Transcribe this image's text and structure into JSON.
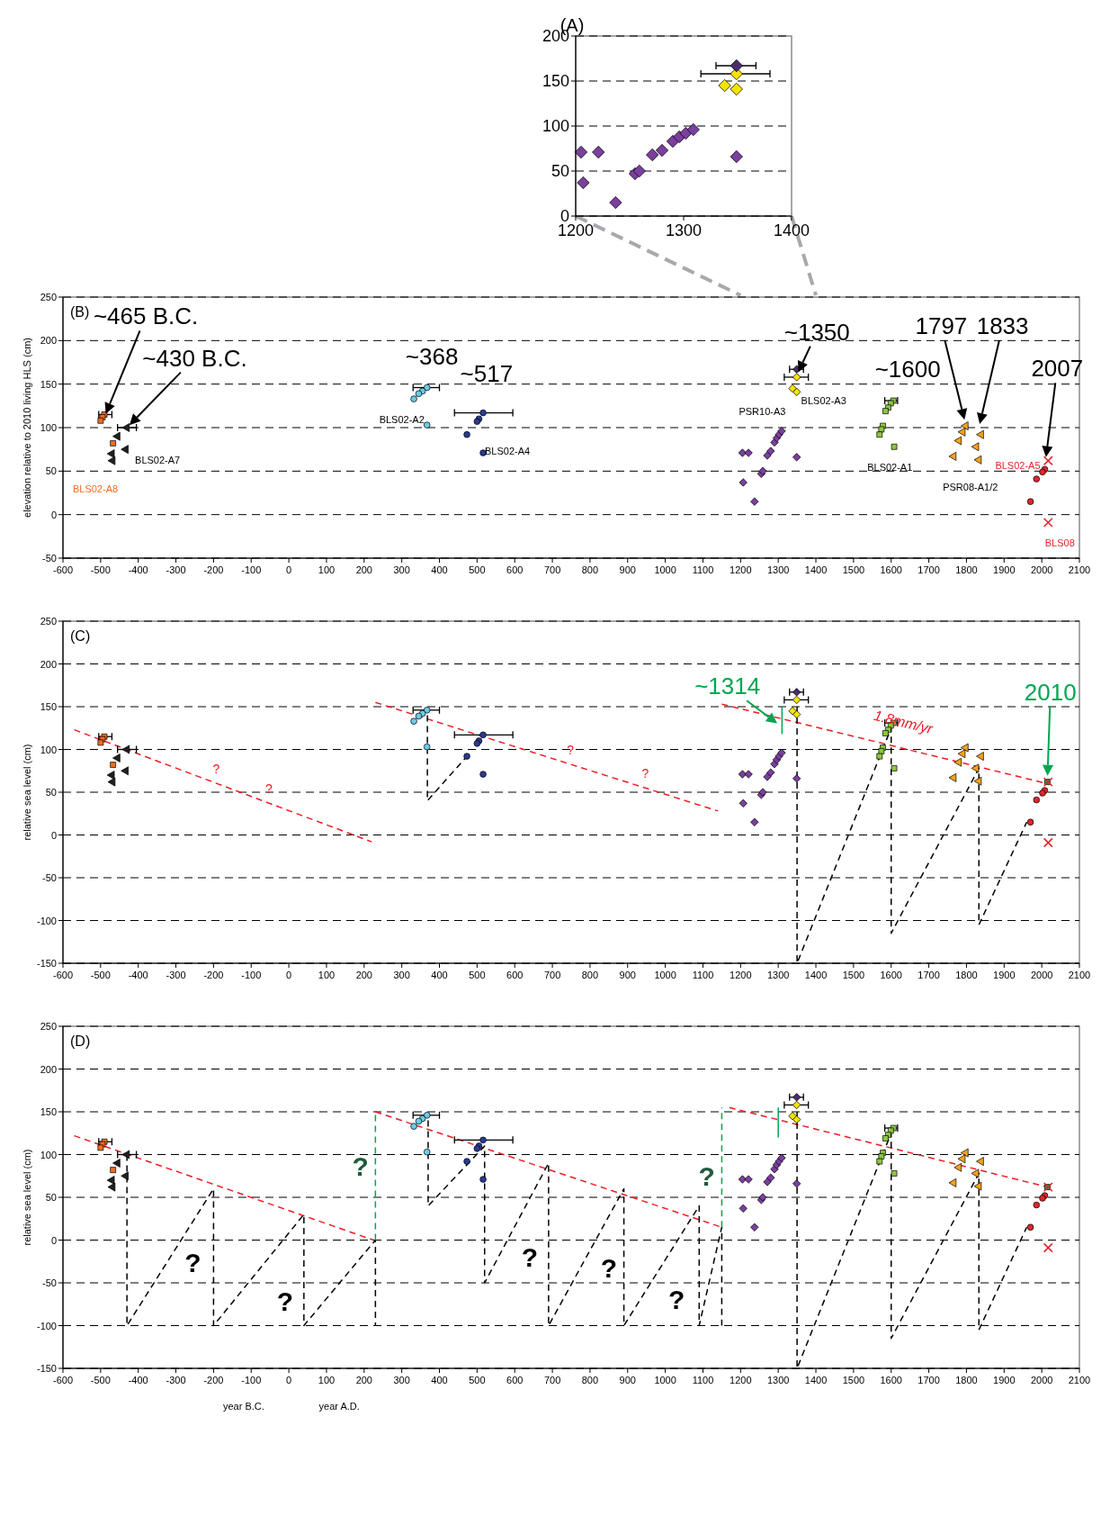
{
  "chart_data": [
    {
      "type": "scatter",
      "title": "(A)",
      "xlim": [
        1200,
        1400
      ],
      "xticks": [
        1200,
        1300,
        1400
      ],
      "ylim": [
        0,
        200
      ],
      "yticks": [
        0,
        50,
        100,
        150,
        200
      ],
      "grid": "y",
      "series": [
        {
          "color": "#7b3f9e",
          "marker": "diamond",
          "x": [
            1205,
            1207,
            1221,
            1237,
            1255,
            1259,
            1271,
            1280,
            1290,
            1296,
            1302,
            1309,
            1349
          ],
          "values": [
            71,
            37,
            71,
            15,
            47,
            50,
            68,
            73,
            83,
            88,
            92,
            96,
            66
          ]
        },
        {
          "color": "#f5e400",
          "marker": "diamond",
          "x": [
            1349,
            1349,
            1338
          ],
          "values": [
            158,
            141,
            145
          ],
          "xerrors": [
            [
              1316,
              1380
            ],
            null,
            null
          ]
        },
        {
          "color": "#4a2c6e",
          "marker": "diamond",
          "x": [
            1349
          ],
          "values": [
            167
          ],
          "xerrors": [
            [
              1330,
              1367
            ]
          ]
        }
      ]
    },
    {
      "type": "scatter",
      "title": "(B)",
      "ylabel": "elevation relative to 2010 living HLS (cm)",
      "xlim": [
        -600,
        2100
      ],
      "xticks": [
        -600,
        -500,
        -400,
        -300,
        -200,
        -100,
        0,
        100,
        200,
        300,
        400,
        500,
        600,
        700,
        800,
        900,
        1000,
        1100,
        1200,
        1300,
        1400,
        1500,
        1600,
        1700,
        1800,
        1900,
        2000,
        2100
      ],
      "ylim": [
        -50,
        250
      ],
      "yticks": [
        -50,
        0,
        50,
        100,
        150,
        200,
        250
      ],
      "grid": "y",
      "annotations": [
        "~465 B.C.",
        "~430 B.C.",
        "~368",
        "~517",
        "~1350",
        "~1600",
        "1797",
        "1833",
        "2007"
      ],
      "series": [
        {
          "name": "PSR10-A3",
          "color": "#7b3f9e",
          "marker": "diamond",
          "x": [
            1205,
            1207,
            1221,
            1237,
            1255,
            1259,
            1271,
            1280,
            1290,
            1296,
            1302,
            1309,
            1349
          ],
          "values": [
            71,
            37,
            71,
            15,
            47,
            50,
            68,
            73,
            83,
            88,
            92,
            96,
            66
          ]
        },
        {
          "color": "#4a2c6e",
          "marker": "diamond",
          "x": [
            1349
          ],
          "values": [
            167
          ],
          "xerrors": [
            [
              1330,
              1367
            ]
          ]
        },
        {
          "name": "BLS02-A3",
          "color": "#f5e400",
          "marker": "diamond",
          "x": [
            1349,
            1349,
            1338
          ],
          "values": [
            158,
            141,
            145
          ],
          "xerrors": [
            [
              1316,
              1380
            ],
            null,
            null
          ]
        },
        {
          "name": "BLS02-A1",
          "color": "#8cc63f",
          "marker": "square",
          "x": [
            1606,
            1599,
            1592,
            1585,
            1578,
            1574,
            1569,
            1608
          ],
          "values": [
            131,
            128,
            123,
            119,
            102,
            98,
            92,
            78
          ],
          "xerrors": [
            [
              1583,
              1617
            ],
            null,
            null,
            null,
            null,
            null,
            null,
            null
          ]
        },
        {
          "name": "PSR08-A1/2",
          "color": "#f7a21b",
          "marker": "triangle",
          "x": [
            1839,
            1826,
            1798,
            1790,
            1780,
            1766,
            1833
          ],
          "values": [
            92,
            78,
            102,
            95,
            85,
            67,
            63
          ]
        },
        {
          "name": "BLS02-A5",
          "color": "#e0262b",
          "marker": "circle",
          "x": [
            2008,
            2002,
            1986,
            1970
          ],
          "values": [
            52,
            49,
            41,
            15
          ]
        },
        {
          "name": "BLS08",
          "color": "#e0262b",
          "marker": "cross",
          "x": [
            2017,
            2017
          ],
          "values": [
            62,
            -9
          ]
        },
        {
          "name": "BLS02-A2",
          "color": "#6ccbe6",
          "marker": "circle",
          "x": [
            367,
            355,
            345,
            332,
            367
          ],
          "values": [
            146,
            142,
            139,
            133,
            103
          ],
          "xerrors": [
            [
              330,
              400
            ],
            null,
            null,
            null,
            null
          ]
        },
        {
          "name": "BLS02-A4",
          "color": "#2b3990",
          "marker": "circle",
          "x": [
            516,
            505,
            500,
            473,
            516
          ],
          "values": [
            117,
            110,
            107,
            92,
            71
          ],
          "xerrors": [
            [
              440,
              595
            ],
            null,
            null,
            null,
            null
          ]
        },
        {
          "name": "BLS02-A7",
          "color": "#231f20",
          "marker": "triangle",
          "x": [
            -430,
            -433,
            -455,
            -470,
            -468
          ],
          "values": [
            100,
            75,
            90,
            70,
            62
          ],
          "xerrors": [
            [
              -455,
              -405
            ],
            null,
            null,
            null,
            null
          ]
        },
        {
          "name": "BLS02-A8",
          "color": "#f26b21",
          "marker": "square",
          "x": [
            -490,
            -495,
            -500,
            -467
          ],
          "values": [
            115,
            112,
            108,
            82
          ],
          "xerrors": [
            [
              -505,
              -470
            ],
            null,
            null,
            null
          ]
        }
      ]
    },
    {
      "type": "scatter",
      "title": "(C)",
      "ylabel": "relative sea level (cm)",
      "xlim": [
        -600,
        2100
      ],
      "xticks": [
        -600,
        -500,
        -400,
        -300,
        -200,
        -100,
        0,
        100,
        200,
        300,
        400,
        500,
        600,
        700,
        800,
        900,
        1000,
        1100,
        1200,
        1300,
        1400,
        1500,
        1600,
        1700,
        1800,
        1900,
        2000,
        2100
      ],
      "ylim": [
        -150,
        250
      ],
      "yticks": [
        -150,
        -100,
        -50,
        0,
        50,
        100,
        150,
        200,
        250
      ],
      "grid": "y",
      "annotations": [
        "~1314",
        "2010",
        "1.8mm/yr",
        "?",
        "?",
        "?",
        "?"
      ],
      "series": [
        {
          "type": "line",
          "color": "#ed1c24",
          "line_style": "dashed",
          "x": [
            1150,
            2015
          ],
          "values": [
            153,
            60
          ]
        },
        {
          "type": "line",
          "color": "#ed1c24",
          "line_style": "dashed",
          "x": [
            230,
            1140
          ],
          "values": [
            155,
            28
          ]
        },
        {
          "type": "line",
          "color": "#ed1c24",
          "line_style": "dashed",
          "x": [
            -570,
            220
          ],
          "values": [
            123,
            -8
          ]
        },
        {
          "type": "line",
          "color": "#000000",
          "line_style": "dashed",
          "x": [
            368,
            368,
            473
          ],
          "values": [
            140,
            40,
            92
          ]
        },
        {
          "type": "line",
          "color": "#000000",
          "line_style": "dashed",
          "x": [
            1350,
            1350,
            1600,
            1600,
            1833,
            1833,
            1960
          ],
          "values": [
            150,
            -150,
            125,
            -115,
            78,
            -105,
            15
          ]
        },
        {
          "type": "line",
          "color": "#00a651",
          "line_style": "solid",
          "x": [
            1310,
            1310
          ],
          "values": [
            118,
            150
          ]
        },
        {
          "color": "#00a651",
          "marker": "square",
          "x": [
            2015
          ],
          "values": [
            62
          ]
        },
        {
          "color": "#7b3f9e",
          "marker": "diamond",
          "x": [
            1205,
            1207,
            1221,
            1237,
            1255,
            1259,
            1271,
            1280,
            1290,
            1296,
            1302,
            1309,
            1349
          ],
          "values": [
            71,
            37,
            71,
            15,
            47,
            50,
            68,
            73,
            83,
            88,
            92,
            96,
            66
          ]
        },
        {
          "color": "#4a2c6e",
          "marker": "diamond",
          "x": [
            1349
          ],
          "values": [
            167
          ],
          "xerrors": [
            [
              1330,
              1367
            ]
          ]
        },
        {
          "color": "#f5e400",
          "marker": "diamond",
          "x": [
            1349,
            1349,
            1338
          ],
          "values": [
            158,
            141,
            145
          ],
          "xerrors": [
            [
              1316,
              1380
            ],
            null,
            null
          ]
        },
        {
          "color": "#8cc63f",
          "marker": "square",
          "x": [
            1606,
            1599,
            1592,
            1585,
            1578,
            1574,
            1569,
            1608
          ],
          "values": [
            131,
            128,
            123,
            119,
            102,
            98,
            92,
            78
          ],
          "xerrors": [
            [
              1583,
              1617
            ],
            null,
            null,
            null,
            null,
            null,
            null,
            null
          ]
        },
        {
          "color": "#f7a21b",
          "marker": "triangle",
          "x": [
            1839,
            1826,
            1798,
            1790,
            1780,
            1766,
            1833
          ],
          "values": [
            92,
            78,
            102,
            95,
            85,
            67,
            63
          ]
        },
        {
          "color": "#e0262b",
          "marker": "circle",
          "x": [
            2008,
            2002,
            1986,
            1970
          ],
          "values": [
            52,
            49,
            41,
            15
          ]
        },
        {
          "color": "#e0262b",
          "marker": "cross",
          "x": [
            2017,
            2017
          ],
          "values": [
            62,
            -9
          ]
        },
        {
          "color": "#6ccbe6",
          "marker": "circle",
          "x": [
            367,
            355,
            345,
            332,
            367
          ],
          "values": [
            146,
            142,
            139,
            133,
            103
          ],
          "xerrors": [
            [
              330,
              400
            ],
            null,
            null,
            null,
            null
          ]
        },
        {
          "color": "#2b3990",
          "marker": "circle",
          "x": [
            516,
            505,
            500,
            473,
            516
          ],
          "values": [
            117,
            110,
            107,
            92,
            71
          ],
          "xerrors": [
            [
              440,
              595
            ],
            null,
            null,
            null,
            null
          ]
        },
        {
          "color": "#231f20",
          "marker": "triangle",
          "x": [
            -430,
            -433,
            -455,
            -470,
            -468
          ],
          "values": [
            100,
            75,
            90,
            70,
            62
          ],
          "xerrors": [
            [
              -455,
              -405
            ],
            null,
            null,
            null,
            null
          ]
        },
        {
          "color": "#f26b21",
          "marker": "square",
          "x": [
            -490,
            -495,
            -500,
            -467
          ],
          "values": [
            115,
            112,
            108,
            82
          ],
          "xerrors": [
            [
              -505,
              -470
            ],
            null,
            null,
            null
          ]
        }
      ]
    },
    {
      "type": "scatter",
      "title": "(D)",
      "ylabel": "relative sea level (cm)",
      "xlim": [
        -600,
        2100
      ],
      "xticks": [
        -600,
        -500,
        -400,
        -300,
        -200,
        -100,
        0,
        100,
        200,
        300,
        400,
        500,
        600,
        700,
        800,
        900,
        1000,
        1100,
        1200,
        1300,
        1400,
        1500,
        1600,
        1700,
        1800,
        1900,
        2000,
        2100
      ],
      "ylim": [
        -150,
        250
      ],
      "yticks": [
        -150,
        -100,
        -50,
        0,
        50,
        100,
        150,
        200,
        250
      ],
      "grid": "y",
      "annotations": [
        "?",
        "?",
        "?",
        "?",
        "?",
        "?",
        "?",
        "year B.C.",
        "year A.D."
      ],
      "series": [
        {
          "type": "line",
          "color": "#ed1c24",
          "line_style": "dashed",
          "x": [
            1170,
            2015
          ],
          "values": [
            155,
            62
          ]
        },
        {
          "type": "line",
          "color": "#ed1c24",
          "line_style": "dashed",
          "x": [
            230,
            1150
          ],
          "values": [
            150,
            15
          ]
        },
        {
          "type": "line",
          "color": "#ed1c24",
          "line_style": "dashed",
          "x": [
            -570,
            225
          ],
          "values": [
            122,
            0
          ]
        },
        {
          "type": "line",
          "color": "#000000",
          "line_style": "dashed",
          "x": [
            -430,
            -430,
            -200,
            -200,
            40,
            40,
            230,
            230
          ],
          "values": [
            100,
            -100,
            60,
            -100,
            30,
            -100,
            0,
            -100
          ]
        },
        {
          "type": "line",
          "color": "#000000",
          "line_style": "dashed",
          "x": [
            370,
            370,
            520,
            520,
            690,
            690,
            890,
            890,
            1090,
            1090,
            1150,
            1150
          ],
          "values": [
            140,
            40,
            110,
            -50,
            90,
            -100,
            60,
            -100,
            40,
            -100,
            15,
            -100
          ]
        },
        {
          "type": "line",
          "color": "#000000",
          "line_style": "dashed",
          "x": [
            1350,
            1350,
            1600,
            1600,
            1833,
            1833,
            1960
          ],
          "values": [
            150,
            -150,
            125,
            -115,
            78,
            -105,
            15
          ]
        },
        {
          "type": "line",
          "color": "#00a651",
          "line_style": "dashed",
          "x": [
            230,
            230
          ],
          "values": [
            0,
            150
          ]
        },
        {
          "type": "line",
          "color": "#00a651",
          "line_style": "dashed",
          "x": [
            1150,
            1150
          ],
          "values": [
            15,
            155
          ]
        },
        {
          "type": "line",
          "color": "#00a651",
          "line_style": "solid",
          "x": [
            1300,
            1300
          ],
          "values": [
            120,
            155
          ]
        },
        {
          "color": "#00a651",
          "marker": "square",
          "x": [
            2015
          ],
          "values": [
            62
          ]
        },
        {
          "color": "#7b3f9e",
          "marker": "diamond",
          "x": [
            1205,
            1207,
            1221,
            1237,
            1255,
            1259,
            1271,
            1280,
            1290,
            1296,
            1302,
            1309,
            1349
          ],
          "values": [
            71,
            37,
            71,
            15,
            47,
            50,
            68,
            73,
            83,
            88,
            92,
            96,
            66
          ]
        },
        {
          "color": "#4a2c6e",
          "marker": "diamond",
          "x": [
            1349
          ],
          "values": [
            167
          ],
          "xerrors": [
            [
              1330,
              1367
            ]
          ]
        },
        {
          "color": "#f5e400",
          "marker": "diamond",
          "x": [
            1349,
            1349,
            1338
          ],
          "values": [
            158,
            141,
            145
          ],
          "xerrors": [
            [
              1316,
              1380
            ],
            null,
            null
          ]
        },
        {
          "color": "#8cc63f",
          "marker": "square",
          "x": [
            1606,
            1599,
            1592,
            1585,
            1578,
            1574,
            1569,
            1608
          ],
          "values": [
            131,
            128,
            123,
            119,
            102,
            98,
            92,
            78
          ],
          "xerrors": [
            [
              1583,
              1617
            ],
            null,
            null,
            null,
            null,
            null,
            null,
            null
          ]
        },
        {
          "color": "#f7a21b",
          "marker": "triangle",
          "x": [
            1839,
            1826,
            1798,
            1790,
            1780,
            1766,
            1833
          ],
          "values": [
            92,
            78,
            102,
            95,
            85,
            67,
            63
          ]
        },
        {
          "color": "#e0262b",
          "marker": "circle",
          "x": [
            2008,
            2002,
            1986,
            1970
          ],
          "values": [
            52,
            49,
            41,
            15
          ]
        },
        {
          "color": "#e0262b",
          "marker": "cross",
          "x": [
            2017,
            2017
          ],
          "values": [
            62,
            -9
          ]
        },
        {
          "color": "#6ccbe6",
          "marker": "circle",
          "x": [
            367,
            355,
            345,
            332,
            367
          ],
          "values": [
            146,
            142,
            139,
            133,
            103
          ],
          "xerrors": [
            [
              330,
              400
            ],
            null,
            null,
            null,
            null
          ]
        },
        {
          "color": "#2b3990",
          "marker": "circle",
          "x": [
            516,
            505,
            500,
            473,
            516
          ],
          "values": [
            117,
            110,
            107,
            92,
            71
          ],
          "xerrors": [
            [
              440,
              595
            ],
            null,
            null,
            null,
            null
          ]
        },
        {
          "color": "#231f20",
          "marker": "triangle",
          "x": [
            -430,
            -433,
            -455,
            -470,
            -468
          ],
          "values": [
            100,
            75,
            90,
            70,
            62
          ],
          "xerrors": [
            [
              -455,
              -405
            ],
            null,
            null,
            null,
            null
          ]
        },
        {
          "color": "#f26b21",
          "marker": "square",
          "x": [
            -490,
            -495,
            -500,
            -467
          ],
          "values": [
            115,
            112,
            108,
            82
          ],
          "xerrors": [
            [
              -505,
              -470
            ],
            null,
            null,
            null
          ]
        }
      ]
    }
  ]
}
